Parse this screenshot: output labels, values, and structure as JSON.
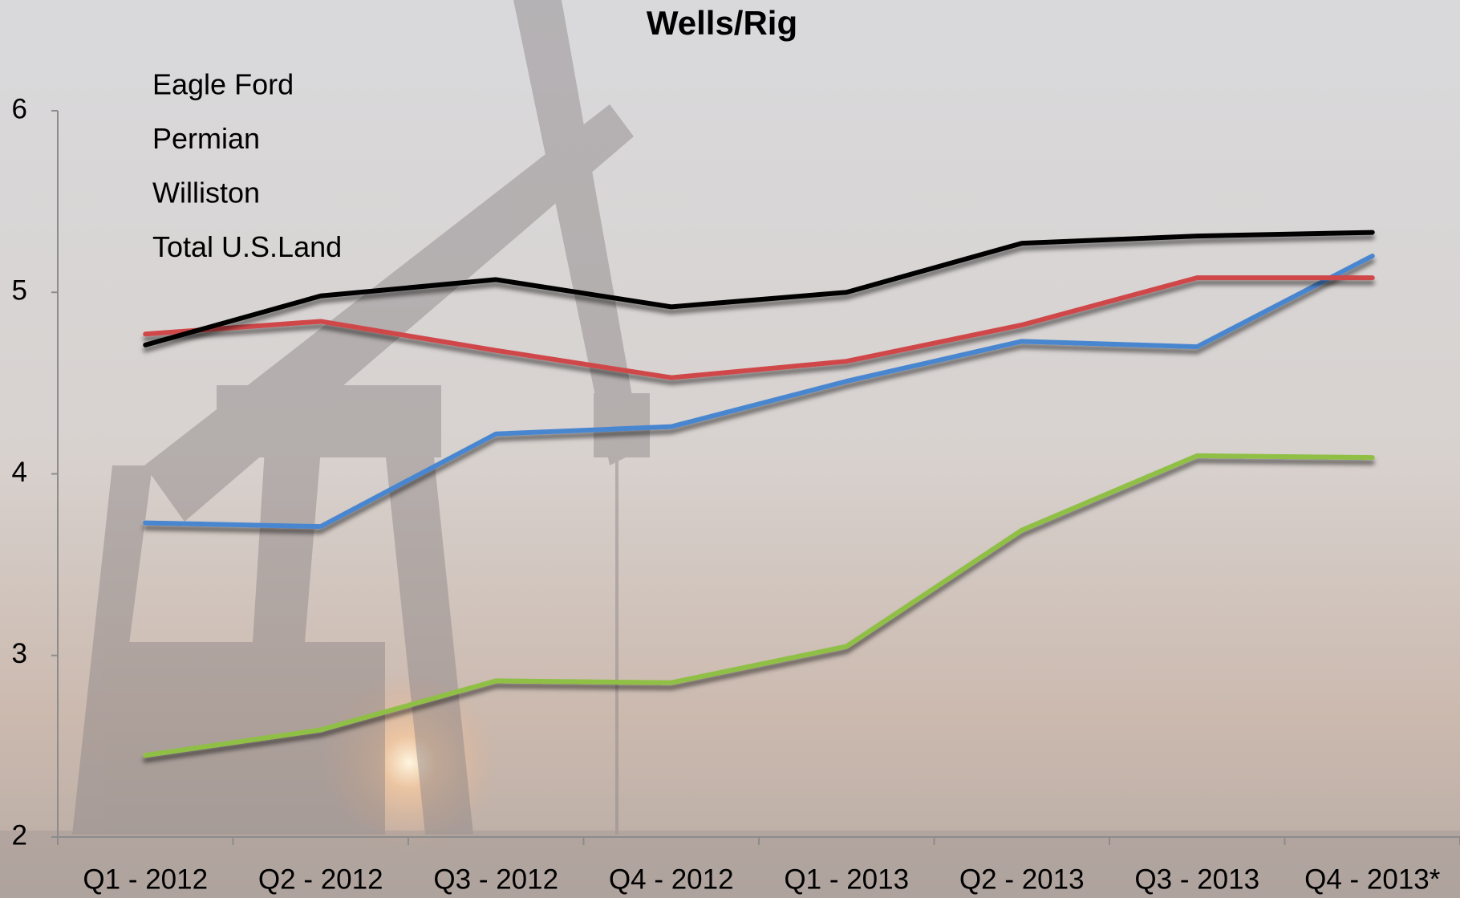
{
  "chart_data": {
    "type": "line",
    "title": "Wells/Rig",
    "categories": [
      "Q1 - 2012",
      "Q2 - 2012",
      "Q3 - 2012",
      "Q4 - 2012",
      "Q1 - 2013",
      "Q2 - 2013",
      "Q3 - 2013",
      "Q4 - 2013*"
    ],
    "series": [
      {
        "name": "Eagle Ford",
        "color": "#4a86d0",
        "values": [
          3.73,
          3.71,
          4.22,
          4.26,
          4.51,
          4.73,
          4.7,
          5.2
        ]
      },
      {
        "name": "Permian",
        "color": "#d0474a",
        "values": [
          4.77,
          4.84,
          4.68,
          4.53,
          4.62,
          4.82,
          5.08,
          5.08
        ]
      },
      {
        "name": "Williston",
        "color": "#8fc045",
        "values": [
          2.45,
          2.59,
          2.86,
          2.85,
          3.05,
          3.69,
          4.1,
          4.09
        ]
      },
      {
        "name": "Total U.S.Land",
        "color": "#000000",
        "values": [
          4.71,
          4.98,
          5.07,
          4.92,
          5.0,
          5.27,
          5.31,
          5.33
        ]
      }
    ],
    "ylim": [
      2,
      6
    ],
    "yticks": [
      2,
      3,
      4,
      5,
      6
    ],
    "grid": false,
    "legend": "upper left"
  }
}
